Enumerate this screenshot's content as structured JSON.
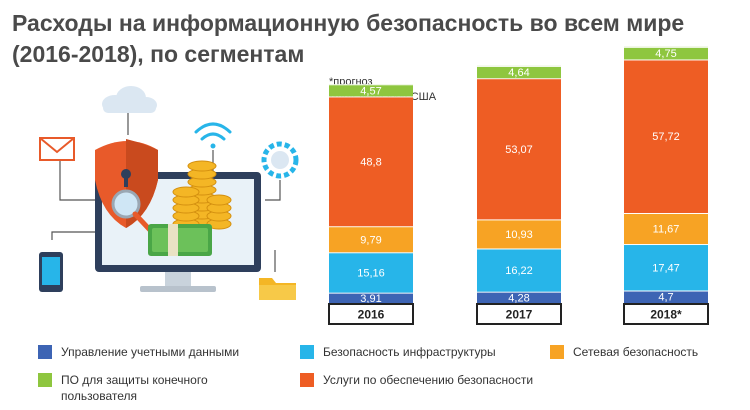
{
  "title_line1": "Расходы на информационную безопасность во всем мире",
  "title_line2": "(2016-2018), по сегментам",
  "note_line1": "*прогноз",
  "note_line2": "млрд долларов США",
  "colors": {
    "identity": "#3d64b4",
    "infrastructure": "#27b5e9",
    "network": "#f7a324",
    "services": "#ee5d24",
    "endpoint": "#8ec63f"
  },
  "chart_data": {
    "type": "bar",
    "stacked": true,
    "categories": [
      "2016",
      "2017",
      "2018*"
    ],
    "series": [
      {
        "key": "identity",
        "name": "Управление учетными данными",
        "values": [
          3.91,
          4.28,
          4.7
        ],
        "labels": [
          "3,91",
          "4,28",
          "4,7"
        ]
      },
      {
        "key": "infrastructure",
        "name": "Безопасность инфраструктуры",
        "values": [
          15.16,
          16.22,
          17.47
        ],
        "labels": [
          "15,16",
          "16,22",
          "17,47"
        ]
      },
      {
        "key": "network",
        "name": "Сетевая безопасность",
        "values": [
          9.79,
          10.93,
          11.67
        ],
        "labels": [
          "9,79",
          "10,93",
          "11,67"
        ]
      },
      {
        "key": "services",
        "name": "Услуги по обеспечению безопасности",
        "values": [
          48.8,
          53.07,
          57.72
        ],
        "labels": [
          "48,8",
          "53,07",
          "57,72"
        ]
      },
      {
        "key": "endpoint",
        "name": "ПО для защиты конечного пользователя",
        "values": [
          4.57,
          4.64,
          4.75
        ],
        "labels": [
          "4,57",
          "4,64",
          "4,75"
        ]
      }
    ],
    "unit": "млрд долларов США",
    "legend_placement": "bottom"
  },
  "legend": {
    "identity": "Управление учетными данными",
    "infrastructure": "Безопасность инфраструктуры",
    "network": "Сетевая безопасность",
    "endpoint_line1": "ПО для защиты конечного",
    "endpoint_line2": "пользователя",
    "services": "Услуги по обеспечению безопасности"
  }
}
